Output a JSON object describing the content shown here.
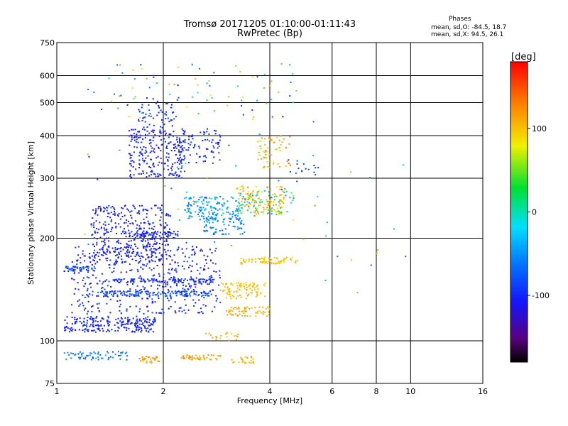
{
  "chart_data": {
    "type": "scatter",
    "title": "Tromsø 20171205 01:10:00-01:11:43",
    "subtitle": "RwPretec (Bp)",
    "xlabel": "Frequency [MHz]",
    "ylabel": "Stationary phase Virtual Height [km]",
    "x_scale": "log",
    "y_scale": "log",
    "xlim": [
      1,
      16
    ],
    "ylim": [
      75,
      750
    ],
    "x_ticks": [
      "1",
      "2",
      "4",
      "6",
      "8",
      "10",
      "16"
    ],
    "x_tick_values": [
      1,
      2,
      4,
      6,
      8,
      10,
      16
    ],
    "x_grid_values": [
      2,
      4,
      6,
      8,
      10
    ],
    "y_ticks": [
      "75",
      "100",
      "200",
      "300",
      "400",
      "500",
      "600",
      "750"
    ],
    "y_tick_values": [
      75,
      100,
      200,
      300,
      400,
      500,
      600,
      750
    ],
    "y_grid_values": [
      100,
      200,
      300,
      400,
      500,
      600
    ],
    "grid": true,
    "phase_stats": {
      "heading": "Phases",
      "line_o": "mean, sd,O: -84.5, 18.7",
      "line_x": "mean, sd,X:  94.5, 26.1"
    },
    "colorbar": {
      "label": "[deg]",
      "range": [
        -180,
        180
      ],
      "ticks": [
        "100",
        "0",
        "-100"
      ],
      "tick_values": [
        100,
        0,
        -100
      ]
    },
    "clusters": [
      {
        "f": [
          1.05,
          1.9
        ],
        "h": [
          106,
          118
        ],
        "phase": [
          -115,
          -90
        ],
        "n": 230
      },
      {
        "f": [
          1.05,
          1.3
        ],
        "h": [
          160,
          166
        ],
        "phase": [
          -110,
          -60
        ],
        "n": 45
      },
      {
        "f": [
          1.1,
          2.9
        ],
        "h": [
          120,
          190
        ],
        "phase": [
          -120,
          -80
        ],
        "n": 420
      },
      {
        "f": [
          1.3,
          2.7
        ],
        "h": [
          135,
          140
        ],
        "phase": [
          -110,
          -60
        ],
        "n": 140
      },
      {
        "f": [
          1.35,
          2.8
        ],
        "h": [
          148,
          152
        ],
        "phase": [
          -110,
          -80
        ],
        "n": 110
      },
      {
        "f": [
          1.25,
          2.1
        ],
        "h": [
          170,
          250
        ],
        "phase": [
          -120,
          -95
        ],
        "n": 380
      },
      {
        "f": [
          1.6,
          2.2
        ],
        "h": [
          200,
          210
        ],
        "phase": [
          -115,
          -90
        ],
        "n": 70
      },
      {
        "f": [
          1.6,
          2.3
        ],
        "h": [
          300,
          420
        ],
        "phase": [
          -120,
          -90
        ],
        "n": 240
      },
      {
        "f": [
          1.7,
          2.2
        ],
        "h": [
          420,
          520
        ],
        "phase": [
          -110,
          -80
        ],
        "n": 60
      },
      {
        "f": [
          2.2,
          2.9
        ],
        "h": [
          330,
          420
        ],
        "phase": [
          -115,
          -85
        ],
        "n": 90
      },
      {
        "f": [
          2.3,
          3.3
        ],
        "h": [
          225,
          265
        ],
        "phase": [
          -70,
          -20
        ],
        "n": 150
      },
      {
        "f": [
          2.6,
          3.4
        ],
        "h": [
          205,
          230
        ],
        "phase": [
          -80,
          -40
        ],
        "n": 70
      },
      {
        "f": [
          3.2,
          4.4
        ],
        "h": [
          235,
          285
        ],
        "phase": [
          80,
          125
        ],
        "n": 130
      },
      {
        "f": [
          3.2,
          4.7
        ],
        "h": [
          235,
          280
        ],
        "phase": [
          -60,
          60
        ],
        "n": 70
      },
      {
        "f": [
          3.7,
          4.6
        ],
        "h": [
          320,
          400
        ],
        "phase": [
          90,
          130
        ],
        "n": 60
      },
      {
        "f": [
          3.3,
          4.8
        ],
        "h": [
          168,
          176
        ],
        "phase": [
          90,
          110
        ],
        "n": 70
      },
      {
        "f": [
          3.0,
          4.0
        ],
        "h": [
          118,
          126
        ],
        "phase": [
          95,
          125
        ],
        "n": 60
      },
      {
        "f": [
          2.9,
          3.9
        ],
        "h": [
          133,
          142
        ],
        "phase": [
          90,
          115
        ],
        "n": 50
      },
      {
        "f": [
          2.9,
          3.9
        ],
        "h": [
          142,
          148
        ],
        "phase": [
          85,
          110
        ],
        "n": 50
      },
      {
        "f": [
          1.05,
          1.6
        ],
        "h": [
          88,
          93
        ],
        "phase": [
          -90,
          -40
        ],
        "n": 60
      },
      {
        "f": [
          1.7,
          1.95
        ],
        "h": [
          86,
          90
        ],
        "phase": [
          110,
          125
        ],
        "n": 30
      },
      {
        "f": [
          2.25,
          2.9
        ],
        "h": [
          88,
          91
        ],
        "phase": [
          100,
          130
        ],
        "n": 45
      },
      {
        "f": [
          3.1,
          3.6
        ],
        "h": [
          86,
          90
        ],
        "phase": [
          95,
          120
        ],
        "n": 25
      },
      {
        "f": [
          2.6,
          3.3
        ],
        "h": [
          100,
          106
        ],
        "phase": [
          95,
          125
        ],
        "n": 20
      },
      {
        "f": [
          4.5,
          5.4
        ],
        "h": [
          300,
          340
        ],
        "phase": [
          -100,
          -70
        ],
        "n": 15
      },
      {
        "f": [
          1.4,
          4.7
        ],
        "h": [
          450,
          650
        ],
        "phase": [
          -120,
          120
        ],
        "n": 70
      },
      {
        "f": [
          1.2,
          6.0
        ],
        "h": [
          190,
          560
        ],
        "phase": [
          -120,
          130
        ],
        "n": 60
      },
      {
        "f": [
          5.6,
          10.1
        ],
        "h": [
          130,
          420
        ],
        "phase": [
          -110,
          140
        ],
        "n": 12
      }
    ]
  }
}
